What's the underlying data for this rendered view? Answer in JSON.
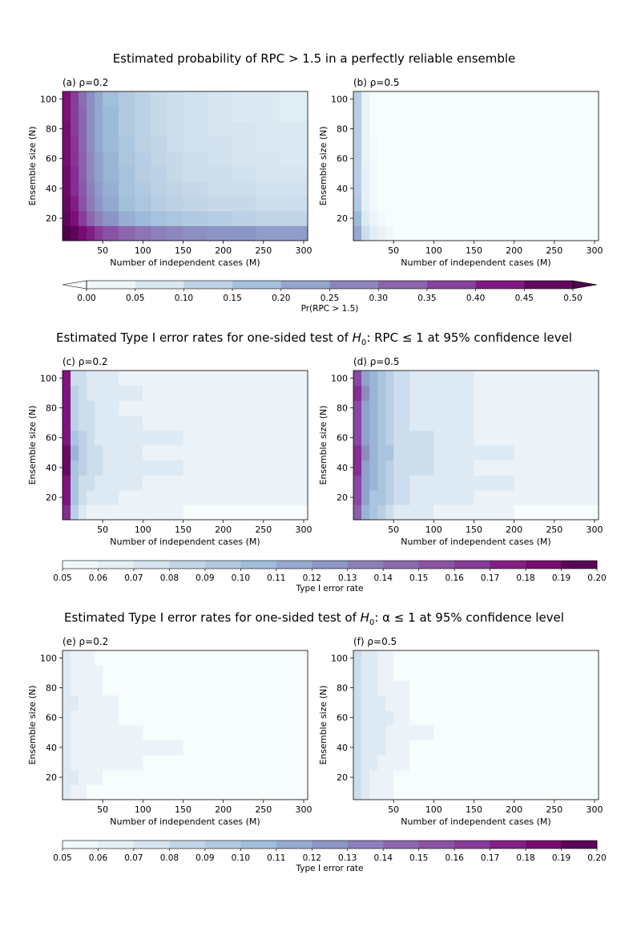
{
  "colors": {
    "bupu": [
      "#f7fcfd",
      "#e0ecf4",
      "#bfd3e6",
      "#9ebcda",
      "#8c96c6",
      "#8c6bb1",
      "#88419d",
      "#810f7c",
      "#4d004b"
    ],
    "axis": "#000000",
    "background": "#ffffff"
  },
  "chart_data": [
    {
      "type": "heatmap",
      "section_title": "Estimated probability of RPC > 1.5 in a perfectly reliable ensemble",
      "panel_title": "(a) ρ=0.2",
      "xlabel": "Number of independent cases (M)",
      "ylabel": "Ensemble size (N)",
      "xlim": [
        0,
        305
      ],
      "ylim": [
        5,
        105
      ],
      "xticks": [
        50,
        100,
        150,
        200,
        250,
        300
      ],
      "yticks": [
        20,
        40,
        60,
        80,
        100
      ],
      "x_bins": [
        0,
        10,
        20,
        30,
        40,
        50,
        70,
        90,
        110,
        130,
        150,
        180,
        210,
        240,
        270,
        305
      ],
      "y_bins": [
        5,
        15,
        25,
        35,
        45,
        55,
        65,
        75,
        85,
        95,
        105
      ],
      "values": [
        [
          0.5,
          0.48,
          0.45,
          0.42,
          0.38,
          0.35,
          0.32,
          0.3,
          0.28,
          0.27,
          0.26,
          0.25,
          0.25,
          0.24,
          0.24
        ],
        [
          0.48,
          0.44,
          0.38,
          0.32,
          0.28,
          0.25,
          0.21,
          0.19,
          0.17,
          0.16,
          0.15,
          0.14,
          0.13,
          0.12,
          0.12
        ],
        [
          0.47,
          0.42,
          0.35,
          0.29,
          0.25,
          0.22,
          0.18,
          0.16,
          0.14,
          0.13,
          0.12,
          0.11,
          0.11,
          0.1,
          0.1
        ],
        [
          0.46,
          0.4,
          0.34,
          0.28,
          0.24,
          0.21,
          0.17,
          0.15,
          0.13,
          0.12,
          0.11,
          0.1,
          0.1,
          0.09,
          0.09
        ],
        [
          0.46,
          0.4,
          0.33,
          0.27,
          0.23,
          0.2,
          0.17,
          0.14,
          0.13,
          0.11,
          0.1,
          0.1,
          0.09,
          0.08,
          0.08
        ],
        [
          0.45,
          0.39,
          0.33,
          0.27,
          0.23,
          0.2,
          0.16,
          0.14,
          0.12,
          0.11,
          0.1,
          0.09,
          0.08,
          0.08,
          0.07
        ],
        [
          0.45,
          0.39,
          0.32,
          0.26,
          0.22,
          0.19,
          0.16,
          0.13,
          0.12,
          0.1,
          0.09,
          0.09,
          0.08,
          0.07,
          0.07
        ],
        [
          0.45,
          0.38,
          0.32,
          0.26,
          0.22,
          0.19,
          0.15,
          0.13,
          0.11,
          0.1,
          0.09,
          0.08,
          0.08,
          0.07,
          0.07
        ],
        [
          0.44,
          0.38,
          0.32,
          0.26,
          0.22,
          0.19,
          0.15,
          0.13,
          0.11,
          0.1,
          0.09,
          0.08,
          0.07,
          0.07,
          0.06
        ],
        [
          0.44,
          0.38,
          0.31,
          0.26,
          0.22,
          0.18,
          0.15,
          0.13,
          0.11,
          0.1,
          0.09,
          0.08,
          0.07,
          0.07,
          0.06
        ]
      ]
    },
    {
      "type": "heatmap",
      "section_title": "Estimated probability of RPC > 1.5 in a perfectly reliable ensemble",
      "panel_title": "(b) ρ=0.5",
      "xlabel": "Number of independent cases (M)",
      "ylabel": "Ensemble size (N)",
      "xlim": [
        0,
        305
      ],
      "ylim": [
        5,
        105
      ],
      "xticks": [
        50,
        100,
        150,
        200,
        250,
        300
      ],
      "yticks": [
        20,
        40,
        60,
        80,
        100
      ],
      "x_bins": [
        0,
        10,
        20,
        30,
        40,
        50,
        305
      ],
      "y_bins": [
        5,
        15,
        25,
        35,
        45,
        55,
        65,
        75,
        85,
        95,
        105
      ],
      "values": [
        [
          0.22,
          0.1,
          0.06,
          0.04,
          0.02,
          0.0
        ],
        [
          0.19,
          0.07,
          0.03,
          0.01,
          0.0,
          0.0
        ],
        [
          0.15,
          0.05,
          0.01,
          0.0,
          0.0,
          0.0
        ],
        [
          0.14,
          0.05,
          0.01,
          0.0,
          0.0,
          0.0
        ],
        [
          0.14,
          0.05,
          0.01,
          0.0,
          0.0,
          0.0
        ],
        [
          0.14,
          0.04,
          0.01,
          0.0,
          0.0,
          0.0
        ],
        [
          0.14,
          0.04,
          0.01,
          0.0,
          0.0,
          0.0
        ],
        [
          0.14,
          0.04,
          0.0,
          0.0,
          0.0,
          0.0
        ],
        [
          0.14,
          0.04,
          0.0,
          0.0,
          0.0,
          0.0
        ],
        [
          0.14,
          0.04,
          0.0,
          0.0,
          0.0,
          0.0
        ]
      ]
    },
    {
      "type": "heatmap",
      "section_title": "Estimated Type I error rates for one-sided test of H0: RPC ≤ 1 at 95% confidence level",
      "panel_title": "(c) ρ=0.2",
      "xlabel": "Number of independent cases (M)",
      "ylabel": "Ensemble size (N)",
      "xlim": [
        0,
        305
      ],
      "ylim": [
        5,
        105
      ],
      "xticks": [
        50,
        100,
        150,
        200,
        250,
        300
      ],
      "yticks": [
        20,
        40,
        60,
        80,
        100
      ],
      "x_bins": [
        0,
        10,
        20,
        30,
        40,
        50,
        70,
        100,
        150,
        200,
        305
      ],
      "y_bins": [
        5,
        15,
        25,
        35,
        45,
        55,
        65,
        75,
        85,
        95,
        105
      ],
      "values": [
        [
          0.17,
          0.09,
          0.07,
          0.06,
          0.06,
          0.06,
          0.06,
          0.06,
          0.05,
          0.05
        ],
        [
          0.18,
          0.1,
          0.08,
          0.07,
          0.07,
          0.07,
          0.06,
          0.06,
          0.06,
          0.06
        ],
        [
          0.18,
          0.1,
          0.08,
          0.08,
          0.07,
          0.07,
          0.07,
          0.06,
          0.06,
          0.06
        ],
        [
          0.19,
          0.1,
          0.09,
          0.08,
          0.08,
          0.07,
          0.07,
          0.07,
          0.06,
          0.06
        ],
        [
          0.19,
          0.11,
          0.09,
          0.08,
          0.08,
          0.07,
          0.07,
          0.06,
          0.06,
          0.06
        ],
        [
          0.18,
          0.1,
          0.09,
          0.08,
          0.07,
          0.07,
          0.07,
          0.07,
          0.06,
          0.06
        ],
        [
          0.18,
          0.09,
          0.08,
          0.08,
          0.07,
          0.07,
          0.07,
          0.06,
          0.06,
          0.06
        ],
        [
          0.18,
          0.09,
          0.08,
          0.08,
          0.07,
          0.07,
          0.06,
          0.06,
          0.06,
          0.06
        ],
        [
          0.18,
          0.09,
          0.08,
          0.07,
          0.07,
          0.07,
          0.07,
          0.06,
          0.06,
          0.06
        ],
        [
          0.18,
          0.08,
          0.08,
          0.07,
          0.07,
          0.07,
          0.06,
          0.06,
          0.06,
          0.06
        ]
      ]
    },
    {
      "type": "heatmap",
      "section_title": "Estimated Type I error rates for one-sided test of H0: RPC ≤ 1 at 95% confidence level",
      "panel_title": "(d) ρ=0.5",
      "xlabel": "Number of independent cases (M)",
      "ylabel": "Ensemble size (N)",
      "xlim": [
        0,
        305
      ],
      "ylim": [
        5,
        105
      ],
      "xticks": [
        50,
        100,
        150,
        200,
        250,
        300
      ],
      "yticks": [
        20,
        40,
        60,
        80,
        100
      ],
      "x_bins": [
        0,
        10,
        20,
        30,
        40,
        50,
        70,
        100,
        150,
        200,
        305
      ],
      "y_bins": [
        5,
        15,
        25,
        35,
        45,
        55,
        65,
        75,
        85,
        95,
        105
      ],
      "values": [
        [
          0.15,
          0.11,
          0.1,
          0.09,
          0.08,
          0.07,
          0.07,
          0.06,
          0.06,
          0.05
        ],
        [
          0.16,
          0.12,
          0.1,
          0.1,
          0.09,
          0.08,
          0.07,
          0.07,
          0.06,
          0.06
        ],
        [
          0.16,
          0.12,
          0.11,
          0.1,
          0.09,
          0.08,
          0.07,
          0.07,
          0.07,
          0.06
        ],
        [
          0.17,
          0.12,
          0.11,
          0.1,
          0.09,
          0.08,
          0.08,
          0.07,
          0.06,
          0.06
        ],
        [
          0.17,
          0.13,
          0.11,
          0.1,
          0.1,
          0.08,
          0.08,
          0.07,
          0.07,
          0.06
        ],
        [
          0.16,
          0.12,
          0.11,
          0.1,
          0.09,
          0.08,
          0.08,
          0.07,
          0.06,
          0.06
        ],
        [
          0.16,
          0.12,
          0.11,
          0.1,
          0.09,
          0.08,
          0.07,
          0.07,
          0.06,
          0.06
        ],
        [
          0.16,
          0.12,
          0.11,
          0.1,
          0.09,
          0.08,
          0.07,
          0.07,
          0.06,
          0.06
        ],
        [
          0.17,
          0.13,
          0.11,
          0.1,
          0.09,
          0.08,
          0.07,
          0.07,
          0.06,
          0.06
        ],
        [
          0.16,
          0.12,
          0.11,
          0.1,
          0.09,
          0.08,
          0.07,
          0.07,
          0.06,
          0.06
        ]
      ]
    },
    {
      "type": "heatmap",
      "section_title": "Estimated Type I error rates for one-sided test of H0: α ≤ 1 at 95% confidence level",
      "panel_title": "(e) ρ=0.2",
      "xlabel": "Number of independent cases (M)",
      "ylabel": "Ensemble size (N)",
      "xlim": [
        0,
        305
      ],
      "ylim": [
        5,
        105
      ],
      "xticks": [
        50,
        100,
        150,
        200,
        250,
        300
      ],
      "yticks": [
        20,
        40,
        60,
        80,
        100
      ],
      "x_bins": [
        0,
        10,
        20,
        30,
        40,
        50,
        70,
        100,
        150,
        200,
        305
      ],
      "y_bins": [
        5,
        15,
        25,
        35,
        45,
        55,
        65,
        75,
        85,
        95,
        105
      ],
      "values": [
        [
          0.07,
          0.06,
          0.06,
          0.05,
          0.05,
          0.05,
          0.05,
          0.05,
          0.05,
          0.05
        ],
        [
          0.07,
          0.07,
          0.06,
          0.06,
          0.06,
          0.05,
          0.05,
          0.05,
          0.05,
          0.05
        ],
        [
          0.07,
          0.06,
          0.06,
          0.06,
          0.06,
          0.06,
          0.06,
          0.05,
          0.05,
          0.05
        ],
        [
          0.07,
          0.06,
          0.06,
          0.06,
          0.06,
          0.06,
          0.06,
          0.06,
          0.05,
          0.05
        ],
        [
          0.07,
          0.06,
          0.06,
          0.06,
          0.06,
          0.06,
          0.06,
          0.05,
          0.05,
          0.05
        ],
        [
          0.07,
          0.06,
          0.06,
          0.06,
          0.06,
          0.06,
          0.05,
          0.05,
          0.05,
          0.05
        ],
        [
          0.07,
          0.07,
          0.06,
          0.06,
          0.06,
          0.06,
          0.05,
          0.05,
          0.05,
          0.05
        ],
        [
          0.07,
          0.06,
          0.06,
          0.06,
          0.06,
          0.05,
          0.05,
          0.05,
          0.05,
          0.05
        ],
        [
          0.07,
          0.06,
          0.06,
          0.06,
          0.06,
          0.05,
          0.05,
          0.05,
          0.05,
          0.05
        ],
        [
          0.07,
          0.06,
          0.06,
          0.06,
          0.05,
          0.05,
          0.05,
          0.05,
          0.05,
          0.05
        ]
      ]
    },
    {
      "type": "heatmap",
      "section_title": "Estimated Type I error rates for one-sided test of H0: α ≤ 1 at 95% confidence level",
      "panel_title": "(f) ρ=0.5",
      "xlabel": "Number of independent cases (M)",
      "ylabel": "Ensemble size (N)",
      "xlim": [
        0,
        305
      ],
      "ylim": [
        5,
        105
      ],
      "xticks": [
        50,
        100,
        150,
        200,
        250,
        300
      ],
      "yticks": [
        20,
        40,
        60,
        80,
        100
      ],
      "x_bins": [
        0,
        10,
        20,
        30,
        40,
        50,
        70,
        100,
        150,
        200,
        305
      ],
      "y_bins": [
        5,
        15,
        25,
        35,
        45,
        55,
        65,
        75,
        85,
        95,
        105
      ],
      "values": [
        [
          0.08,
          0.07,
          0.06,
          0.06,
          0.06,
          0.05,
          0.05,
          0.05,
          0.05,
          0.05
        ],
        [
          0.08,
          0.07,
          0.06,
          0.06,
          0.06,
          0.05,
          0.05,
          0.05,
          0.05,
          0.05
        ],
        [
          0.08,
          0.07,
          0.07,
          0.06,
          0.06,
          0.06,
          0.05,
          0.05,
          0.05,
          0.05
        ],
        [
          0.08,
          0.07,
          0.07,
          0.07,
          0.06,
          0.06,
          0.05,
          0.05,
          0.05,
          0.05
        ],
        [
          0.08,
          0.07,
          0.07,
          0.07,
          0.06,
          0.06,
          0.06,
          0.05,
          0.05,
          0.05
        ],
        [
          0.08,
          0.07,
          0.07,
          0.07,
          0.07,
          0.06,
          0.05,
          0.05,
          0.05,
          0.05
        ],
        [
          0.08,
          0.07,
          0.07,
          0.07,
          0.06,
          0.06,
          0.05,
          0.05,
          0.05,
          0.05
        ],
        [
          0.08,
          0.07,
          0.07,
          0.06,
          0.06,
          0.06,
          0.05,
          0.05,
          0.05,
          0.05
        ],
        [
          0.08,
          0.07,
          0.07,
          0.06,
          0.06,
          0.05,
          0.05,
          0.05,
          0.05,
          0.05
        ],
        [
          0.08,
          0.07,
          0.07,
          0.06,
          0.06,
          0.05,
          0.05,
          0.05,
          0.05,
          0.05
        ]
      ]
    }
  ],
  "colorbars": [
    {
      "label": "Pr(RPC > 1.5)",
      "ticks": [
        "0.00",
        "0.05",
        "0.10",
        "0.15",
        "0.20",
        "0.25",
        "0.30",
        "0.35",
        "0.40",
        "0.45",
        "0.50"
      ],
      "boundaries": [
        0,
        0.05,
        0.1,
        0.15,
        0.2,
        0.25,
        0.3,
        0.35,
        0.4,
        0.45,
        0.5
      ],
      "extend": "both"
    },
    {
      "label": "Type I error rate",
      "ticks": [
        "0.05",
        "0.06",
        "0.07",
        "0.08",
        "0.09",
        "0.10",
        "0.11",
        "0.12",
        "0.13",
        "0.14",
        "0.15",
        "0.16",
        "0.17",
        "0.18",
        "0.19",
        "0.20"
      ],
      "boundaries": [
        0.05,
        0.06,
        0.07,
        0.08,
        0.09,
        0.1,
        0.11,
        0.12,
        0.13,
        0.14,
        0.15,
        0.16,
        0.17,
        0.18,
        0.19,
        0.2
      ],
      "extend": "neither"
    },
    {
      "label": "Type I error rate",
      "ticks": [
        "0.05",
        "0.06",
        "0.07",
        "0.08",
        "0.09",
        "0.10",
        "0.11",
        "0.12",
        "0.13",
        "0.14",
        "0.15",
        "0.16",
        "0.17",
        "0.18",
        "0.19",
        "0.20"
      ],
      "boundaries": [
        0.05,
        0.06,
        0.07,
        0.08,
        0.09,
        0.1,
        0.11,
        0.12,
        0.13,
        0.14,
        0.15,
        0.16,
        0.17,
        0.18,
        0.19,
        0.2
      ],
      "extend": "neither"
    }
  ]
}
